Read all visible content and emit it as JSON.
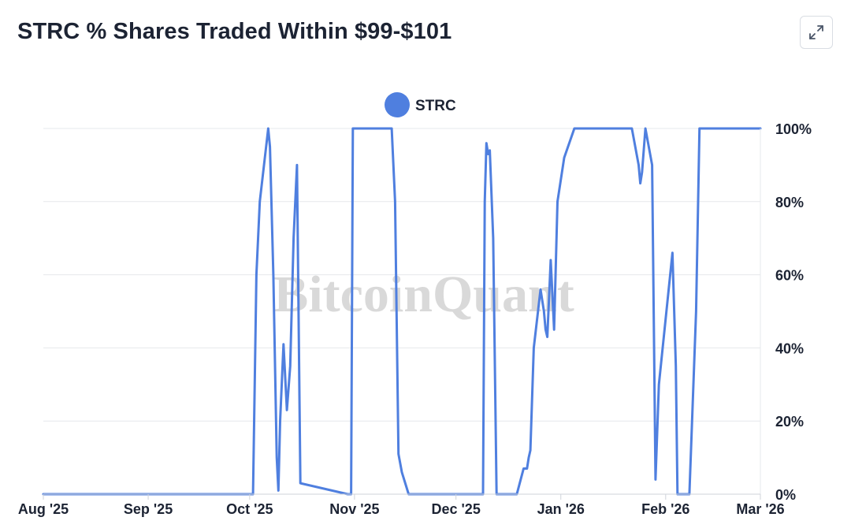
{
  "header": {
    "title": "STRC % Shares Traded Within $99-$101",
    "expand_icon": "expand-icon"
  },
  "watermark": "BitcoinQuant",
  "colors": {
    "series": "#4f7fdf",
    "grid": "#e6e8ec",
    "text": "#1c2333"
  },
  "chart_data": {
    "type": "line",
    "title": "STRC % Shares Traded Within $99-$101",
    "xlabel": "",
    "ylabel": "",
    "ylim": [
      0,
      100
    ],
    "y_ticks": [
      0,
      20,
      40,
      60,
      80,
      100
    ],
    "y_tick_labels": [
      "0%",
      "20%",
      "40%",
      "60%",
      "80%",
      "100%"
    ],
    "x_range_days": [
      0,
      212
    ],
    "x_ticks": [
      0,
      31,
      61,
      92,
      122,
      153,
      184,
      212
    ],
    "x_tick_labels": [
      "Aug '25",
      "Sep '25",
      "Oct '25",
      "Nov '25",
      "Dec '25",
      "Jan '26",
      "Feb '26",
      "Mar '26"
    ],
    "legend": {
      "position": "top-center",
      "entries": [
        "STRC"
      ]
    },
    "series": [
      {
        "name": "STRC",
        "x_unit": "days since Aug 1 2025",
        "x": [
          0,
          62,
          63,
          64,
          66.5,
          67,
          68,
          69,
          69.5,
          70,
          71,
          72,
          73,
          74,
          75,
          76,
          90,
          91,
          91.5,
          103,
          104,
          105,
          106,
          108,
          109,
          111,
          129,
          130,
          130.5,
          131,
          131.5,
          132,
          133,
          134,
          135,
          136,
          137,
          138.5,
          140,
          142,
          143,
          143.5,
          144,
          145,
          147,
          148,
          148.5,
          149,
          150,
          151,
          152,
          154,
          157,
          172,
          174,
          176,
          176.5,
          177,
          178,
          180,
          181,
          182,
          186,
          187,
          187.5,
          189,
          191,
          193,
          194,
          212
        ],
        "y": [
          0,
          0,
          60,
          80,
          100,
          95,
          60,
          10,
          1,
          20,
          41,
          23,
          35,
          70,
          90,
          3,
          0,
          0,
          100,
          100,
          80,
          11,
          6,
          0,
          0,
          0,
          0,
          0,
          80,
          96,
          93,
          94,
          70,
          0,
          0,
          0,
          0,
          0,
          0,
          7,
          7,
          10,
          12,
          40,
          56,
          50,
          45,
          43,
          64,
          45,
          80,
          92,
          100,
          100,
          100,
          90,
          85,
          88,
          100,
          90,
          4,
          30,
          66,
          35,
          0,
          0,
          0,
          50,
          100,
          100
        ]
      }
    ]
  }
}
